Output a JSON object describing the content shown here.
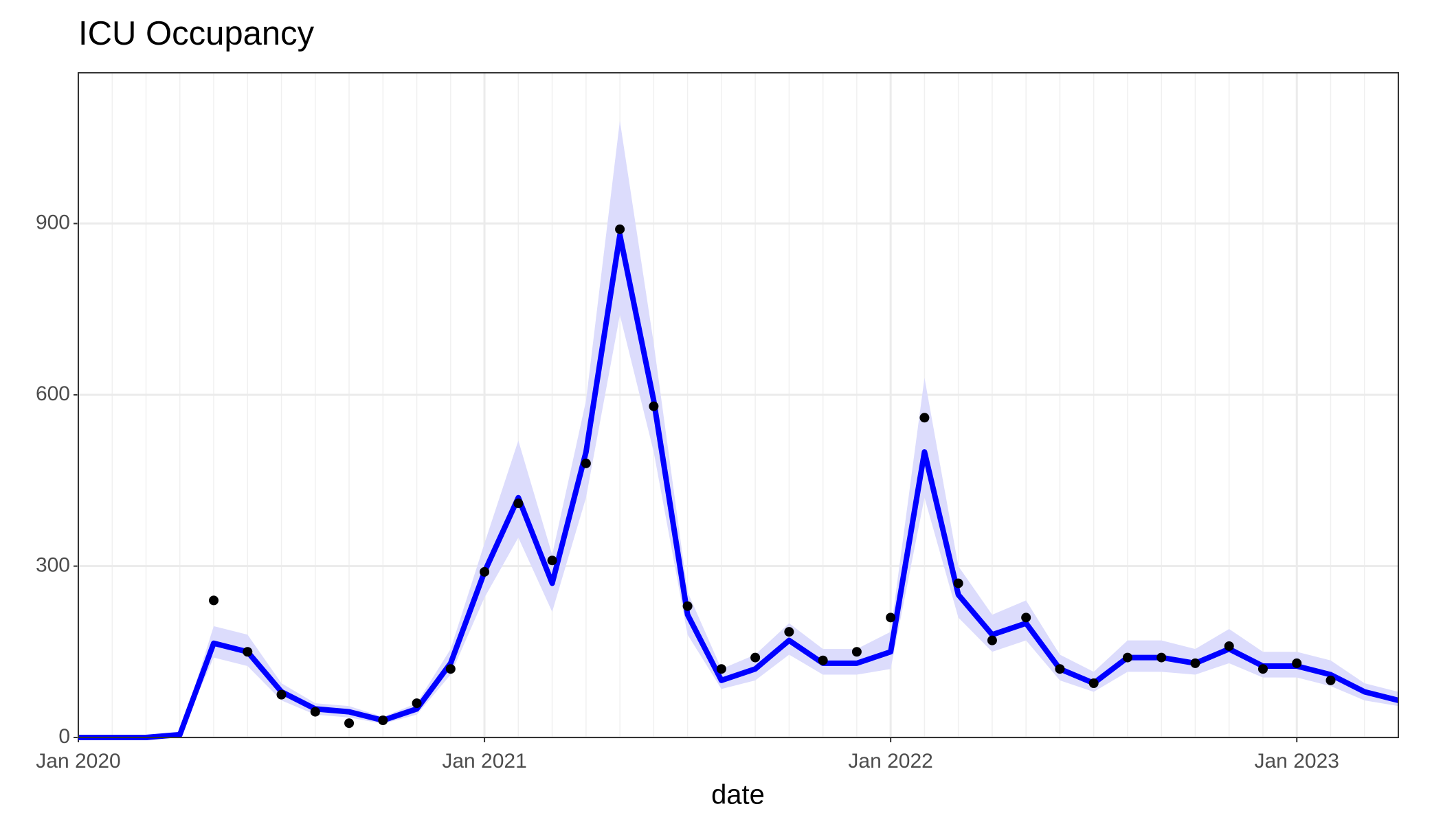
{
  "chart_data": {
    "type": "line",
    "title": "ICU Occupancy",
    "x_label": "date",
    "x": [
      "2020-01",
      "2020-02",
      "2020-03",
      "2020-04",
      "2020-05",
      "2020-06",
      "2020-07",
      "2020-08",
      "2020-09",
      "2020-10",
      "2020-11",
      "2020-12",
      "2021-01",
      "2021-02",
      "2021-03",
      "2021-04",
      "2021-05",
      "2021-06",
      "2021-07",
      "2021-08",
      "2021-09",
      "2021-10",
      "2021-11",
      "2021-12",
      "2022-01",
      "2022-02",
      "2022-03",
      "2022-04",
      "2022-05",
      "2022-06",
      "2022-07",
      "2022-08",
      "2022-09",
      "2022-10",
      "2022-11",
      "2022-12",
      "2023-01",
      "2023-02",
      "2023-03",
      "2023-04"
    ],
    "series": [
      {
        "color": "#0000ff",
        "band_color": "#dcdcfc",
        "values": [
          0,
          0,
          0,
          5,
          165,
          150,
          80,
          50,
          45,
          30,
          50,
          130,
          290,
          420,
          270,
          500,
          880,
          590,
          215,
          100,
          120,
          170,
          130,
          130,
          150,
          500,
          250,
          180,
          200,
          120,
          95,
          140,
          140,
          130,
          155,
          125,
          125,
          110,
          80,
          65
        ],
        "lower": [
          0,
          0,
          0,
          4,
          140,
          125,
          65,
          40,
          35,
          24,
          40,
          110,
          245,
          350,
          220,
          420,
          740,
          500,
          180,
          85,
          100,
          145,
          110,
          110,
          120,
          420,
          210,
          150,
          170,
          100,
          80,
          115,
          115,
          110,
          130,
          105,
          105,
          90,
          65,
          55
        ],
        "upper": [
          0,
          0,
          0,
          6,
          195,
          180,
          95,
          60,
          55,
          36,
          60,
          155,
          340,
          520,
          320,
          590,
          1080,
          690,
          255,
          120,
          145,
          200,
          155,
          155,
          185,
          630,
          300,
          215,
          240,
          145,
          115,
          170,
          170,
          155,
          190,
          150,
          150,
          135,
          95,
          80
        ]
      },
      {
        "color": "#000000",
        "marker": "point",
        "values": [
          null,
          null,
          null,
          null,
          240,
          150,
          75,
          45,
          25,
          30,
          60,
          120,
          290,
          410,
          310,
          480,
          890,
          580,
          230,
          120,
          140,
          185,
          135,
          150,
          210,
          560,
          270,
          170,
          210,
          120,
          95,
          140,
          140,
          130,
          160,
          120,
          130,
          100,
          null,
          null
        ]
      }
    ],
    "xlim": [
      "2020-01",
      "2023-04"
    ],
    "xticks": [
      {
        "value": "2020-01",
        "label": "Jan 2020"
      },
      {
        "value": "2021-01",
        "label": "Jan 2021"
      },
      {
        "value": "2022-01",
        "label": "Jan 2022"
      },
      {
        "value": "2023-01",
        "label": "Jan 2023"
      }
    ],
    "ylim": [
      0,
      1164
    ],
    "yticks": [
      0,
      300,
      600,
      900
    ],
    "grid": true
  }
}
